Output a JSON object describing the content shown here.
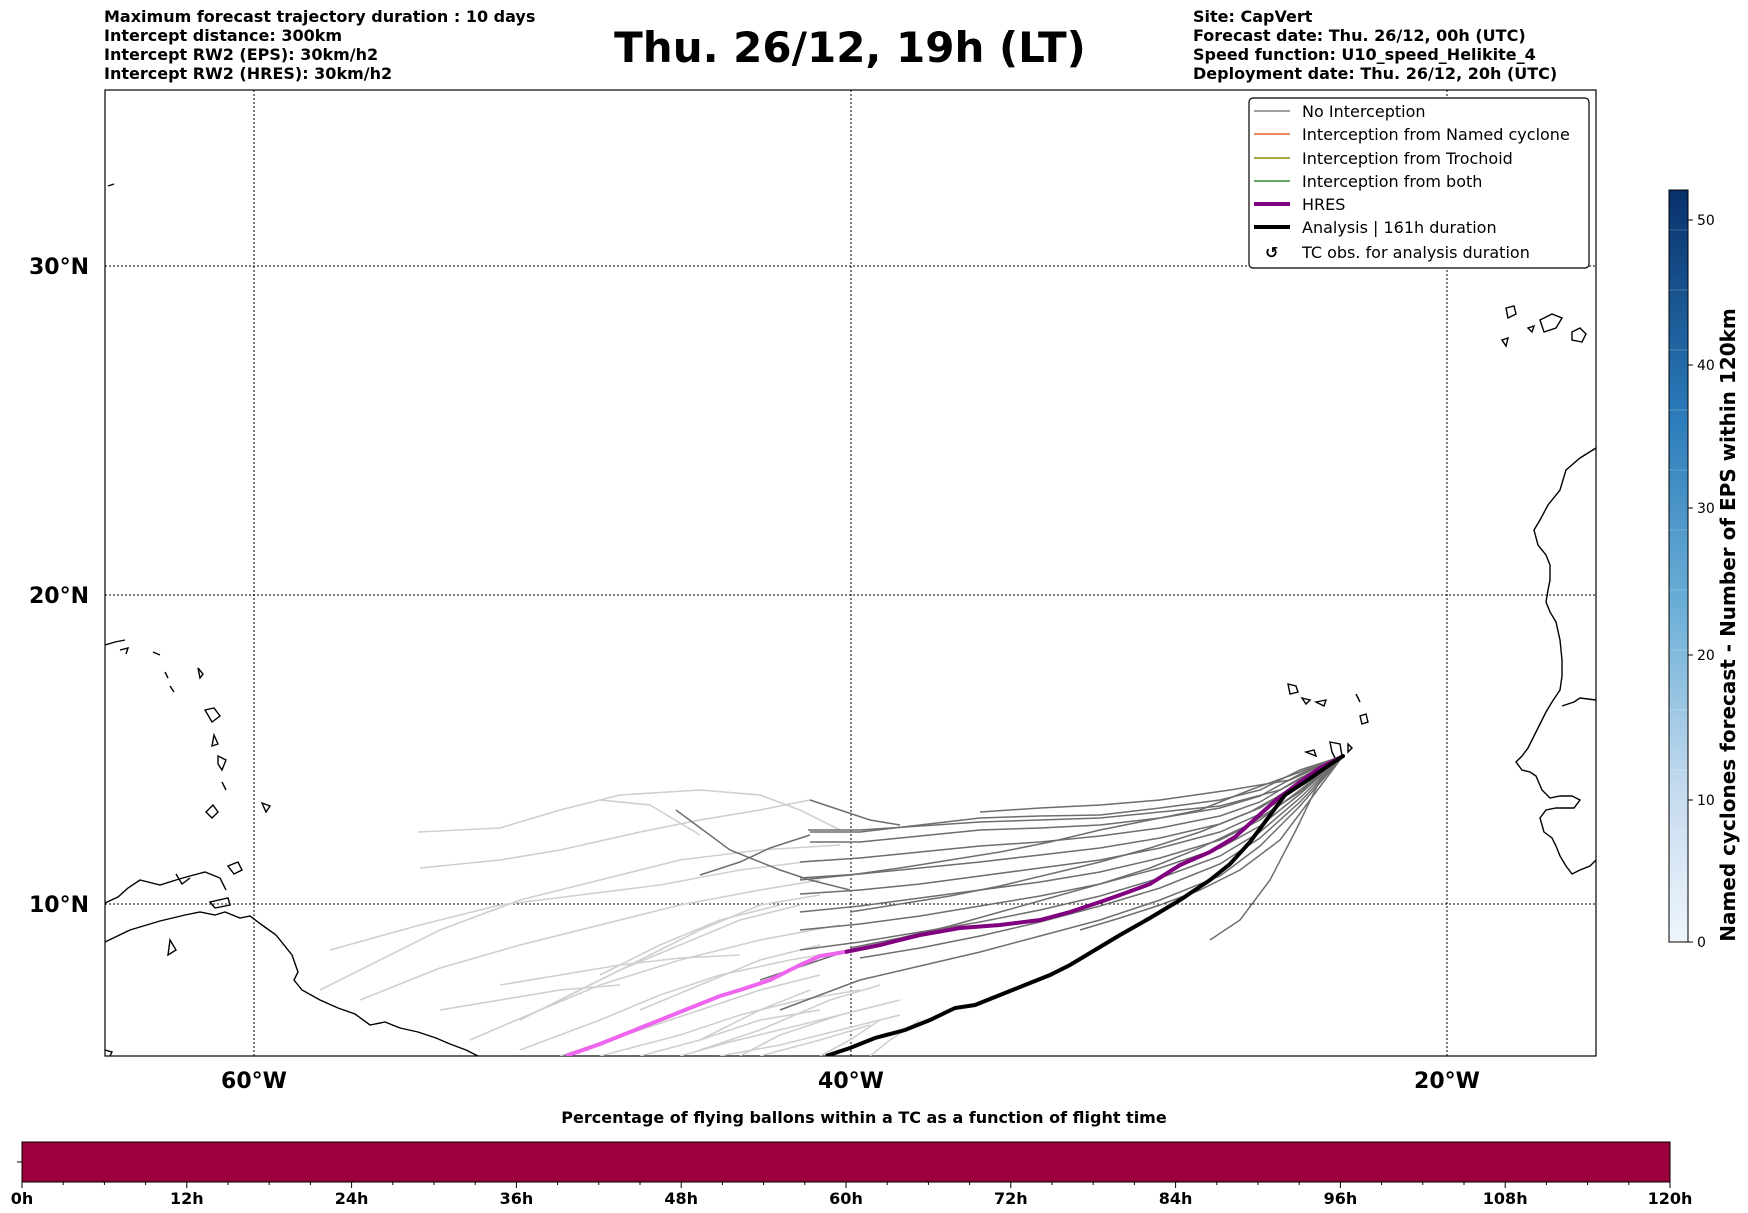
{
  "header_left": [
    "Maximum forecast trajectory duration : 10 days",
    "Intercept distance: 300km",
    "Intercept RW2 (EPS):  30km/h2",
    "Intercept RW2 (HRES): 30km/h2"
  ],
  "title": "Thu. 26/12, 19h (LT)",
  "header_right": [
    "Site: CapVert",
    "Forecast date: Thu. 26/12, 00h (UTC)",
    "Speed function: U10_speed_Helikite_4",
    "Deployment date: Thu. 26/12, 20h (UTC)"
  ],
  "lat_labels": [
    "30°N",
    "20°N",
    "10°N"
  ],
  "lon_labels": [
    "60°W",
    "40°W",
    "20°W"
  ],
  "legend": [
    {
      "label": "No Interception",
      "color": "#808080",
      "style": "thin"
    },
    {
      "label": "Interception from Named cyclone",
      "color": "#e8602c",
      "style": "thin"
    },
    {
      "label": "Interception from Trochoid",
      "color": "#8b8b00",
      "style": "thin"
    },
    {
      "label": "Interception from both",
      "color": "#2e8b2e",
      "style": "thin"
    },
    {
      "label": "HRES",
      "color": "#800080",
      "style": "thick"
    },
    {
      "label": "Analysis | 161h duration",
      "color": "#000000",
      "style": "thick"
    },
    {
      "label": "TC obs. for analysis duration",
      "color": "#000000",
      "style": "symbol"
    }
  ],
  "colorbar": {
    "title": "Named cyclones forecast - Number of EPS within 120km",
    "ticks": [
      "0",
      "10",
      "20",
      "30",
      "40",
      "50"
    ],
    "min_color": "#eef5fc",
    "max_color": "#08306b"
  },
  "timebar": {
    "title": "Percentage of flying ballons within a TC as a function of flight time",
    "ticks": [
      "0h",
      "12h",
      "24h",
      "36h",
      "48h",
      "60h",
      "72h",
      "84h",
      "96h",
      "108h",
      "120h"
    ],
    "fill_color": "#9b003c"
  }
}
